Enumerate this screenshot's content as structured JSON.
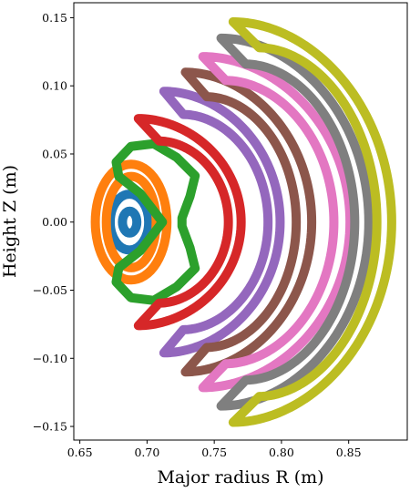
{
  "chart_data": {
    "type": "scatter",
    "title": "",
    "xlabel": "Major radius R (m)",
    "ylabel": "Height Z (m)",
    "xlim": [
      0.6455,
      0.8936
    ],
    "ylim": [
      -0.16,
      0.161
    ],
    "x_ticks": [
      0.65,
      0.7,
      0.75,
      0.8,
      0.85
    ],
    "x_tick_labels": [
      "0.65",
      "0.70",
      "0.75",
      "0.80",
      "0.85"
    ],
    "y_ticks": [
      -0.15,
      -0.1,
      -0.05,
      0.0,
      0.05,
      0.1,
      0.15
    ],
    "y_tick_labels": [
      "−0.15",
      "−0.10",
      "−0.05",
      "0.00",
      "0.05",
      "0.10",
      "0.15"
    ],
    "grid": false,
    "legend": "none",
    "series": [
      {
        "color": "#1f77b4",
        "shape": "ring",
        "outer": [
          0.6726,
          0.7012,
          -0.0205,
          0.0205
        ],
        "inner": [
          0.6817,
          0.6924,
          -0.008,
          0.008
        ]
      },
      {
        "color": "#ff7f0e",
        "shape": "ring",
        "outer": [
          0.6615,
          0.7148,
          -0.0425,
          0.0425
        ],
        "inner": [
          0.6697,
          0.7068,
          -0.0335,
          0.0335
        ]
      },
      {
        "color": "#2ca02c",
        "shape": "kidney",
        "points": [
          [
            0.7358,
            0.034
          ],
          [
            0.722,
            0.0475
          ],
          [
            0.705,
            0.0575
          ],
          [
            0.688,
            0.0555
          ],
          [
            0.677,
            0.044
          ],
          [
            0.679,
            0.0335
          ],
          [
            0.695,
            0.021
          ],
          [
            0.7115,
            0.0
          ],
          [
            0.695,
            -0.021
          ],
          [
            0.679,
            -0.0335
          ],
          [
            0.677,
            -0.044
          ],
          [
            0.688,
            -0.0555
          ],
          [
            0.705,
            -0.0575
          ],
          [
            0.722,
            -0.0475
          ],
          [
            0.7358,
            -0.034
          ],
          [
            0.732,
            -0.019
          ],
          [
            0.726,
            -0.003
          ],
          [
            0.726,
            0.003
          ],
          [
            0.732,
            0.019
          ]
        ]
      },
      {
        "color": "#d62728",
        "shape": "crescent",
        "outer": {
          "xmin": 0.6935,
          "xmax": 0.77,
          "ymax": 0.076
        },
        "inner": {
          "xmin": 0.709,
          "xmax": 0.7605,
          "ymax": 0.0595
        }
      },
      {
        "color": "#9467bd",
        "shape": "crescent",
        "outer": {
          "xmin": 0.7125,
          "xmax": 0.799,
          "ymax": 0.096
        },
        "inner": {
          "xmin": 0.727,
          "xmax": 0.79,
          "ymax": 0.079
        }
      },
      {
        "color": "#8c564b",
        "shape": "crescent",
        "outer": {
          "xmin": 0.7285,
          "xmax": 0.8225,
          "ymax": 0.11
        },
        "inner": {
          "xmin": 0.7445,
          "xmax": 0.811,
          "ymax": 0.092
        }
      },
      {
        "color": "#e377c2",
        "shape": "crescent",
        "outer": {
          "xmin": 0.7415,
          "xmax": 0.851,
          "ymax": 0.1215
        },
        "inner": {
          "xmin": 0.7585,
          "xmax": 0.839,
          "ymax": 0.104
        }
      },
      {
        "color": "#7f7f7f",
        "shape": "crescent",
        "outer": {
          "xmin": 0.755,
          "xmax": 0.865,
          "ymax": 0.135
        },
        "inner": {
          "xmin": 0.7735,
          "xmax": 0.8545,
          "ymax": 0.116
        }
      },
      {
        "color": "#bcbd22",
        "shape": "crescent",
        "outer": {
          "xmin": 0.764,
          "xmax": 0.882,
          "ymax": 0.147
        },
        "inner": {
          "xmin": 0.7835,
          "xmax": 0.871,
          "ymax": 0.128
        }
      }
    ]
  }
}
